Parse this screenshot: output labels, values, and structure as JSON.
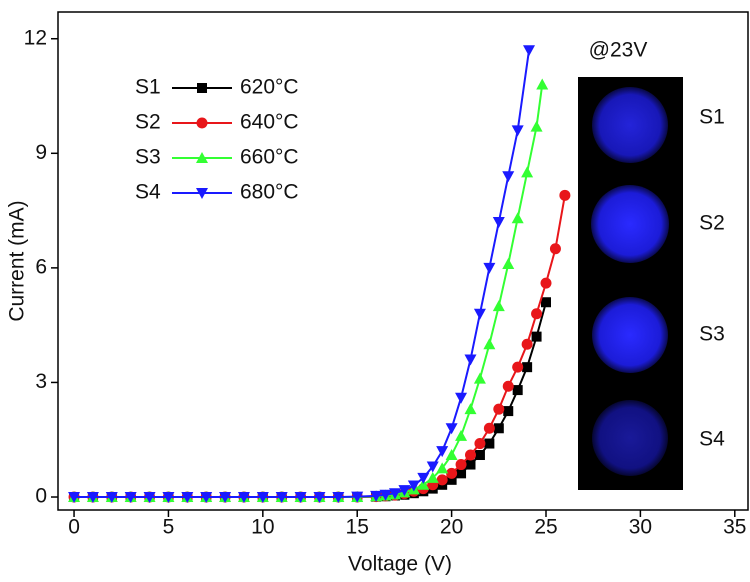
{
  "chart_data": {
    "type": "line",
    "xlabel": "Voltage (V)",
    "ylabel": "Current (mA)",
    "xlim": [
      -0.85,
      35.7
    ],
    "ylim": [
      -0.34,
      12.7
    ],
    "xticks": [
      0,
      5,
      10,
      15,
      20,
      25,
      30,
      35
    ],
    "yticks": [
      0,
      3,
      6,
      9,
      12
    ],
    "series": [
      {
        "sample": "S1",
        "name": "620°C",
        "color": "#000000",
        "marker": "square",
        "x": [
          0,
          1,
          2,
          3,
          4,
          5,
          6,
          7,
          8,
          9,
          10,
          11,
          12,
          13,
          14,
          15,
          16,
          16.5,
          17,
          17.5,
          18,
          18.5,
          19,
          19.5,
          20,
          20.5,
          21,
          21.5,
          22,
          22.5,
          23,
          23.5,
          24,
          24.5,
          25
        ],
        "values": [
          0,
          0,
          0,
          0,
          0,
          0,
          0,
          0,
          0,
          0,
          0,
          0,
          0,
          0,
          0,
          0,
          0.01,
          0.02,
          0.04,
          0.06,
          0.1,
          0.15,
          0.22,
          0.32,
          0.45,
          0.62,
          0.85,
          1.1,
          1.4,
          1.8,
          2.25,
          2.8,
          3.4,
          4.2,
          5.1
        ]
      },
      {
        "sample": "S2",
        "name": "640°C",
        "color": "#e8161a",
        "marker": "circle",
        "x": [
          0,
          1,
          2,
          3,
          4,
          5,
          6,
          7,
          8,
          9,
          10,
          11,
          12,
          13,
          14,
          15,
          16,
          16.5,
          17,
          17.5,
          18,
          18.5,
          19,
          19.5,
          20,
          20.5,
          21,
          21.5,
          22,
          22.5,
          23,
          23.5,
          24,
          24.5,
          25,
          25.5,
          26
        ],
        "values": [
          0,
          0,
          0,
          0,
          0,
          0,
          0,
          0,
          0,
          0,
          0,
          0,
          0,
          0,
          0,
          0,
          0.01,
          0.03,
          0.05,
          0.09,
          0.15,
          0.22,
          0.32,
          0.45,
          0.62,
          0.85,
          1.1,
          1.4,
          1.8,
          2.3,
          2.9,
          3.4,
          4.0,
          4.8,
          5.6,
          6.5,
          7.9
        ]
      },
      {
        "sample": "S3",
        "name": "660°C",
        "color": "#33ff33",
        "marker": "triangle-up",
        "x": [
          0,
          1,
          2,
          3,
          4,
          5,
          6,
          7,
          8,
          9,
          10,
          11,
          12,
          13,
          14,
          15,
          16,
          16.5,
          17,
          17.5,
          18,
          18.5,
          19,
          19.5,
          20,
          20.5,
          21,
          21.5,
          22,
          22.5,
          23,
          23.5,
          24,
          24.5,
          24.8
        ],
        "values": [
          0,
          0,
          0,
          0,
          0,
          0,
          0,
          0,
          0,
          0,
          0,
          0,
          0,
          0,
          0,
          0,
          0.02,
          0.04,
          0.07,
          0.12,
          0.2,
          0.32,
          0.5,
          0.75,
          1.1,
          1.6,
          2.3,
          3.1,
          4.0,
          5.0,
          6.1,
          7.3,
          8.5,
          9.7,
          10.8
        ]
      },
      {
        "sample": "S4",
        "name": "680°C",
        "color": "#1a1aff",
        "marker": "triangle-down",
        "x": [
          0,
          1,
          2,
          3,
          4,
          5,
          6,
          7,
          8,
          9,
          10,
          11,
          12,
          13,
          14,
          15,
          16,
          16.5,
          17,
          17.5,
          18,
          18.5,
          19,
          19.5,
          20,
          20.5,
          21,
          21.5,
          22,
          22.5,
          23,
          23.5,
          24.1
        ],
        "values": [
          0,
          0,
          0,
          0,
          0,
          0,
          0,
          0,
          0,
          0,
          0,
          0,
          0,
          0,
          0,
          0.01,
          0.03,
          0.06,
          0.1,
          0.18,
          0.3,
          0.5,
          0.8,
          1.2,
          1.8,
          2.6,
          3.6,
          4.8,
          6.0,
          7.2,
          8.4,
          9.6,
          11.7
        ]
      }
    ],
    "inset": {
      "title": "@23V",
      "labels": [
        "S1",
        "S2",
        "S3",
        "S4"
      ]
    }
  }
}
